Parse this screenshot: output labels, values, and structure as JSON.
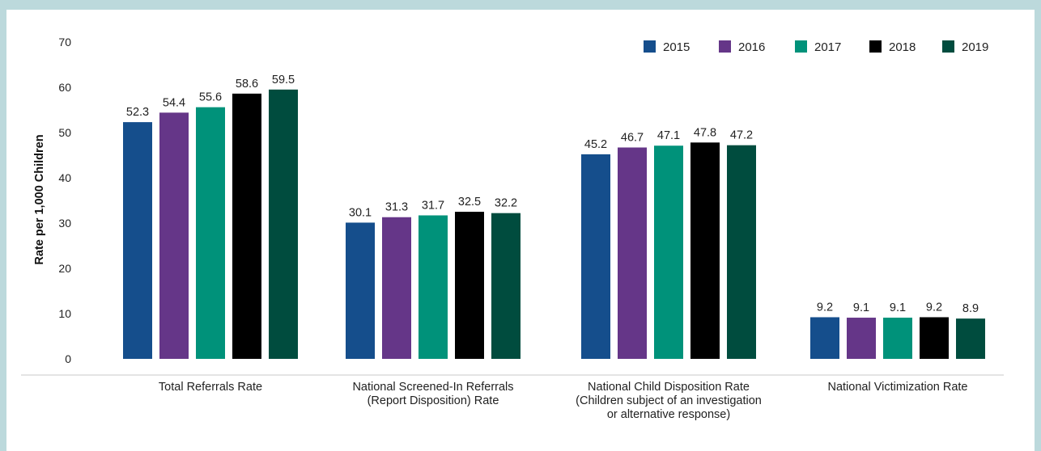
{
  "chart_data": {
    "type": "bar",
    "title": "",
    "xlabel": "",
    "ylabel": "Rate per 1,000 Children",
    "ylim": [
      0,
      70
    ],
    "yticks": [
      0,
      10,
      20,
      30,
      40,
      50,
      60,
      70
    ],
    "grid": false,
    "legend_position": "top-right",
    "categories": [
      [
        "Total Referrals Rate"
      ],
      [
        "National Screened-In Referrals",
        "(Report Disposition) Rate"
      ],
      [
        "National Child Disposition Rate",
        "(Children subject of an investigation",
        "or alternative response)"
      ],
      [
        "National Victimization Rate"
      ]
    ],
    "series": [
      {
        "name": "2015",
        "color": "#154e8c",
        "values": [
          52.3,
          30.1,
          45.2,
          9.2
        ]
      },
      {
        "name": "2016",
        "color": "#653688",
        "values": [
          54.4,
          31.3,
          46.7,
          9.1
        ]
      },
      {
        "name": "2017",
        "color": "#00927a",
        "values": [
          55.6,
          31.7,
          47.1,
          9.1
        ]
      },
      {
        "name": "2018",
        "color": "#000000",
        "values": [
          58.6,
          32.5,
          47.8,
          9.2
        ]
      },
      {
        "name": "2019",
        "color": "#004c3e",
        "values": [
          59.5,
          32.2,
          47.2,
          8.9
        ]
      }
    ]
  }
}
